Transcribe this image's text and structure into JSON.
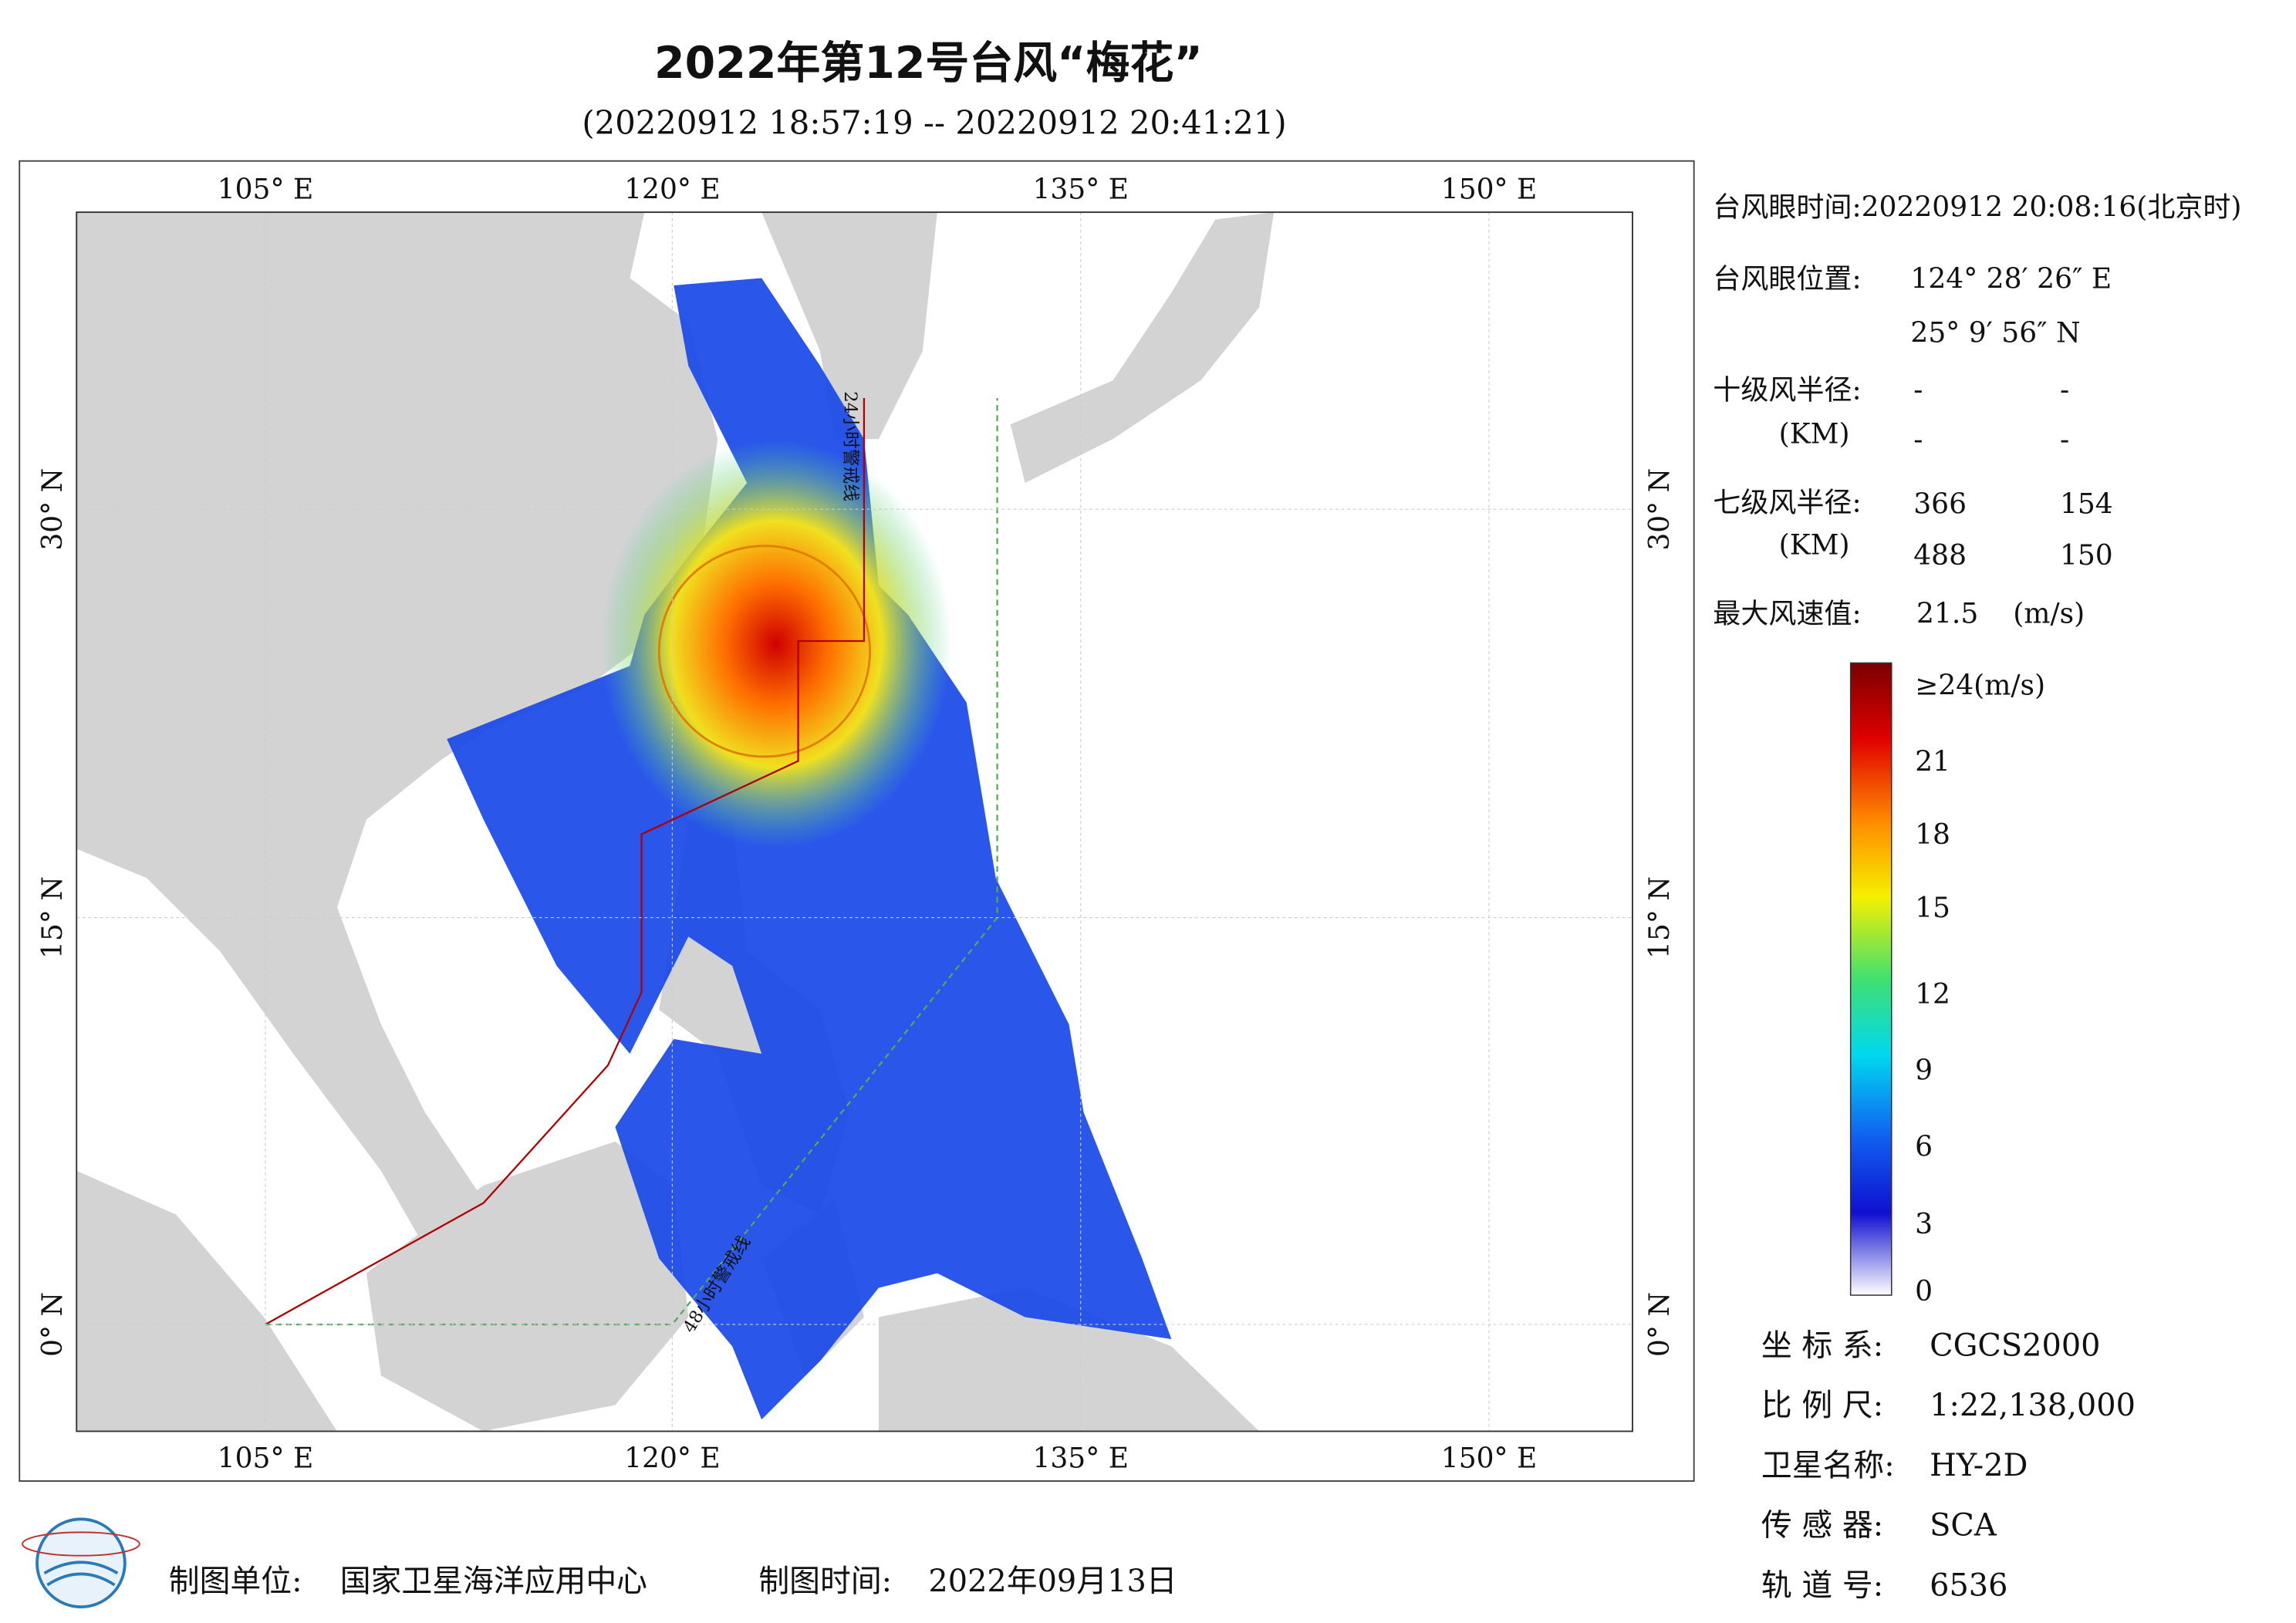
{
  "header": {
    "title": "2022年第12号台风“梅花”",
    "subtitle": "(20220912 18:57:19 -- 20220912 20:41:21)"
  },
  "map": {
    "lon_labels": [
      "105° E",
      "120° E",
      "135° E",
      "150° E"
    ],
    "lat_labels": [
      "30° N",
      "15° N",
      "0° N"
    ],
    "annotations": [
      "24小时警戒线",
      "48小时警戒线"
    ]
  },
  "info": {
    "eye_time": "台风眼时间:20220912 20:08:16(北京时)",
    "eye_pos_label": "台风眼位置:",
    "eye_lon": "124° 28′ 26″ E",
    "eye_lat": "25° 9′ 56″ N",
    "r10_label": "十级风半径:",
    "r10_unit": "(KM)",
    "r10_values": [
      "-",
      "-",
      "-",
      "-"
    ],
    "r7_label": "七级风半径:",
    "r7_unit": "(KM)",
    "r7_values": [
      "366",
      "154",
      "488",
      "150"
    ],
    "max_label": "最大风速值:",
    "max_value": "21.5",
    "max_unit": "(m/s)"
  },
  "colorbar": {
    "labels": [
      "≥24(m/s)",
      "21",
      "18",
      "15",
      "12",
      "9",
      "6",
      "3",
      "0"
    ]
  },
  "meta": [
    {
      "label": "坐 标 系:",
      "value": "CGCS2000"
    },
    {
      "label": "比 例 尺:",
      "value": "1:22,138,000"
    },
    {
      "label": "卫星名称:",
      "value": "HY-2D"
    },
    {
      "label": "传 感 器:",
      "value": "SCA"
    },
    {
      "label": "轨 道 号:",
      "value": "6536"
    }
  ],
  "footer": {
    "unit_label": "制图单位:",
    "unit": "国家卫星海洋应用中心",
    "time_label": "制图时间:",
    "time": "2022年09月13日"
  }
}
